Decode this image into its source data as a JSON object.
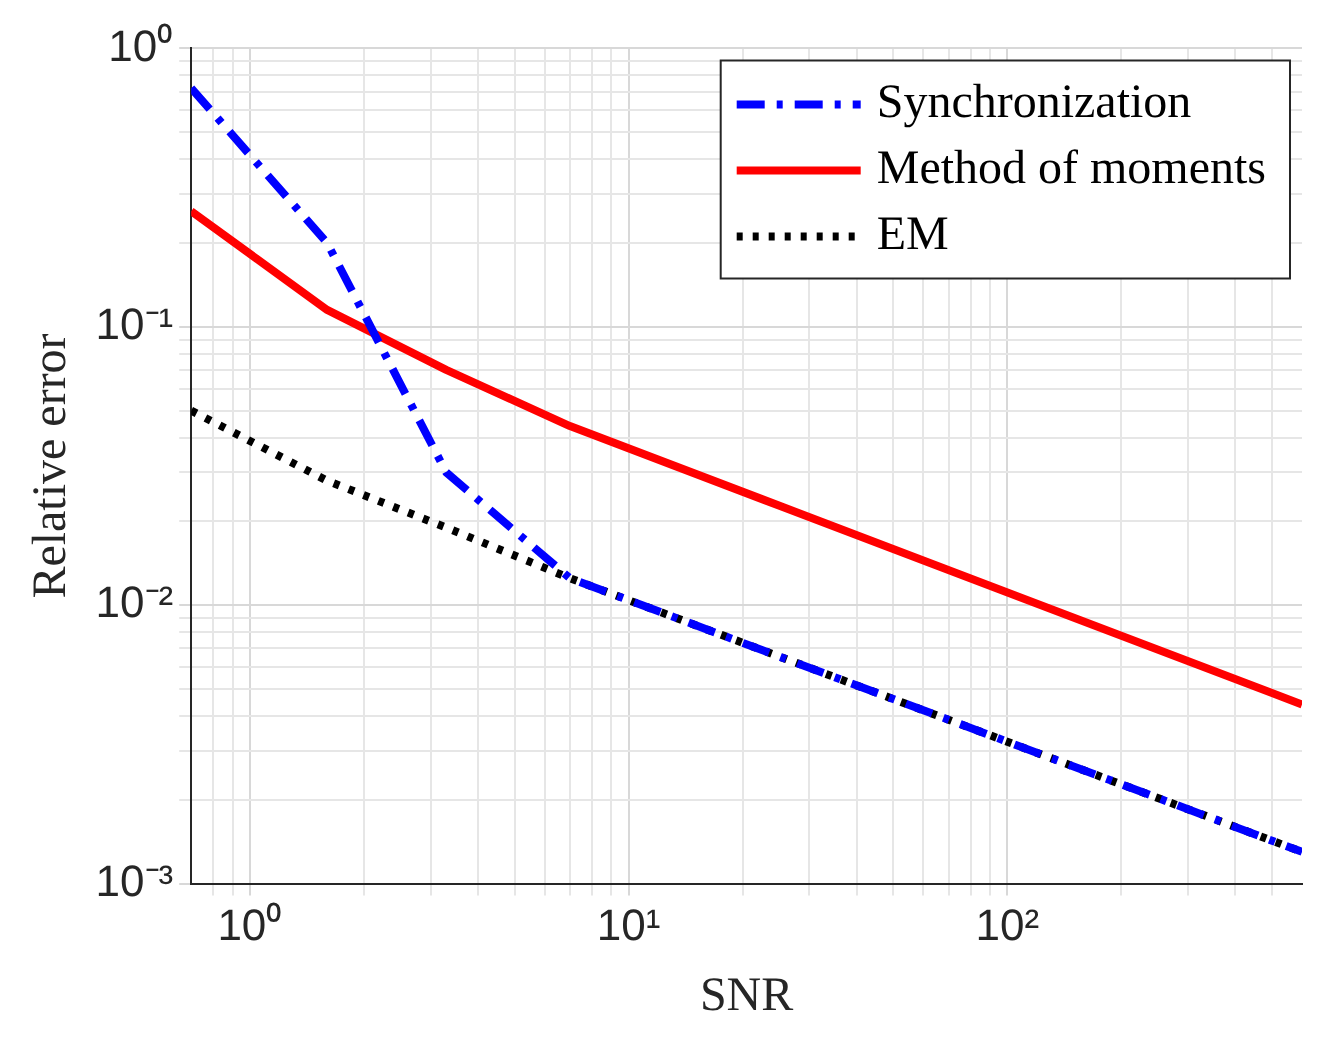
{
  "chart_data": {
    "type": "line",
    "xlabel": "SNR",
    "ylabel": "Relative error",
    "log": "xy",
    "grid": true,
    "legend": "top right",
    "marker": "none",
    "xlim": [
      0.7,
      600
    ],
    "ylim": [
      0.001,
      1
    ],
    "xticks": [
      {
        "value": 1,
        "label": "10⁰"
      },
      {
        "value": 10,
        "label": "10¹"
      },
      {
        "value": 100,
        "label": "10²"
      },
      {
        "value": 0.8,
        "label": null
      },
      {
        "value": 0.9,
        "label": null
      },
      {
        "value": 2,
        "label": null
      },
      {
        "value": 3,
        "label": null
      },
      {
        "value": 4,
        "label": null
      },
      {
        "value": 5,
        "label": null
      },
      {
        "value": 6,
        "label": null
      },
      {
        "value": 7,
        "label": null
      },
      {
        "value": 8,
        "label": null
      },
      {
        "value": 9,
        "label": null
      },
      {
        "value": 20,
        "label": null
      },
      {
        "value": 30,
        "label": null
      },
      {
        "value": 40,
        "label": null
      },
      {
        "value": 50,
        "label": null
      },
      {
        "value": 60,
        "label": null
      },
      {
        "value": 70,
        "label": null
      },
      {
        "value": 80,
        "label": null
      },
      {
        "value": 90,
        "label": null
      },
      {
        "value": 200,
        "label": null
      },
      {
        "value": 300,
        "label": null
      },
      {
        "value": 400,
        "label": null
      },
      {
        "value": 500,
        "label": null
      }
    ],
    "yticks": [
      {
        "value": 0.001,
        "label": "10⁻³"
      },
      {
        "value": 0.01,
        "label": "10⁻²"
      },
      {
        "value": 0.1,
        "label": "10⁻¹"
      },
      {
        "value": 1,
        "label": "10⁰"
      },
      {
        "value": 0.002,
        "label": null
      },
      {
        "value": 0.003,
        "label": null
      },
      {
        "value": 0.004,
        "label": null
      },
      {
        "value": 0.005,
        "label": null
      },
      {
        "value": 0.006,
        "label": null
      },
      {
        "value": 0.007,
        "label": null
      },
      {
        "value": 0.008,
        "label": null
      },
      {
        "value": 0.009,
        "label": null
      },
      {
        "value": 0.02,
        "label": null
      },
      {
        "value": 0.03,
        "label": null
      },
      {
        "value": 0.04,
        "label": null
      },
      {
        "value": 0.05,
        "label": null
      },
      {
        "value": 0.06,
        "label": null
      },
      {
        "value": 0.07,
        "label": null
      },
      {
        "value": 0.08,
        "label": null
      },
      {
        "value": 0.09,
        "label": null
      },
      {
        "value": 0.2,
        "label": null
      },
      {
        "value": 0.3,
        "label": null
      },
      {
        "value": 0.4,
        "label": null
      },
      {
        "value": 0.5,
        "label": null
      },
      {
        "value": 0.6,
        "label": null
      },
      {
        "value": 0.7,
        "label": null
      },
      {
        "value": 0.8,
        "label": null
      },
      {
        "value": 0.9,
        "label": null
      }
    ],
    "x": [
      0.7,
      1.6,
      3.3,
      7,
      600
    ],
    "series": [
      {
        "name": "Synchronization",
        "color": "#0000ff",
        "line_style": "dashdot",
        "values": [
          0.72,
          0.2,
          0.03,
          0.0125,
          0.0013
        ]
      },
      {
        "name": "Method of moments",
        "color": "#ff0000",
        "line_style": "solid",
        "values": [
          0.26,
          0.115,
          0.07,
          0.044,
          0.0044
        ]
      },
      {
        "name": "EM",
        "color": "#000000",
        "line_style": "dotted",
        "values": [
          0.05,
          0.028,
          0.019,
          0.0125,
          0.0013
        ]
      }
    ]
  }
}
